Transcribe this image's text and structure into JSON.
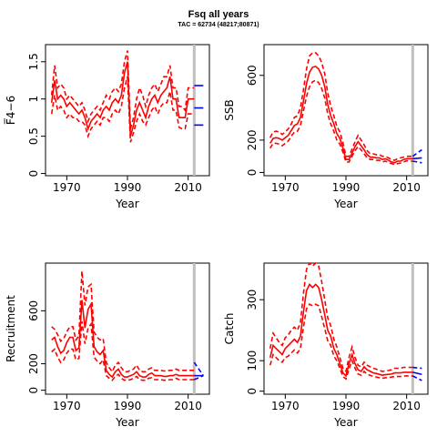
{
  "title": "Fsq all years",
  "subtitle": "TAC = 62734 (48217;80871)",
  "colors": {
    "estimate": "#ff0000",
    "forecast": "#0000ff",
    "marker": "#bfbfbf",
    "axis": "#000000"
  },
  "chart_data": [
    {
      "id": "fbar",
      "type": "line",
      "ylabel": "F̅4−6",
      "xlabel": "Year",
      "xlim": [
        1963,
        2017
      ],
      "ylim": [
        -0.03,
        1.73
      ],
      "xticks": [
        1970,
        1990,
        2010
      ],
      "yticks": [
        0.0,
        0.5,
        1.0,
        1.5
      ],
      "vline": 2012,
      "x": [
        1965,
        1966,
        1967,
        1968,
        1969,
        1970,
        1971,
        1972,
        1973,
        1974,
        1975,
        1976,
        1977,
        1978,
        1979,
        1980,
        1981,
        1982,
        1983,
        1984,
        1985,
        1986,
        1987,
        1988,
        1989,
        1990,
        1991,
        1992,
        1993,
        1994,
        1995,
        1996,
        1997,
        1998,
        1999,
        2000,
        2001,
        2002,
        2003,
        2004,
        2005,
        2006,
        2007,
        2008,
        2009,
        2010,
        2011,
        2012
      ],
      "series": [
        {
          "role": "estimate",
          "values": [
            0.95,
            1.25,
            1.0,
            1.05,
            1.0,
            0.9,
            0.95,
            0.9,
            0.85,
            0.8,
            0.85,
            0.75,
            0.6,
            0.7,
            0.75,
            0.8,
            0.75,
            0.85,
            0.9,
            0.85,
            0.95,
            1.0,
            0.95,
            1.05,
            1.35,
            1.5,
            0.5,
            0.65,
            0.85,
            0.95,
            0.85,
            0.75,
            0.9,
            1.0,
            1.05,
            0.95,
            1.05,
            1.1,
            1.15,
            1.3,
            1.0,
            1.0,
            0.75,
            0.75,
            0.75,
            1.0,
            1.0,
            1.0
          ]
        },
        {
          "role": "upper",
          "values": [
            1.05,
            1.45,
            1.15,
            1.2,
            1.15,
            1.0,
            1.05,
            1.0,
            0.95,
            0.9,
            0.95,
            0.85,
            0.7,
            0.8,
            0.85,
            0.9,
            0.85,
            0.95,
            1.05,
            1.0,
            1.1,
            1.15,
            1.1,
            1.2,
            1.5,
            1.65,
            0.6,
            0.75,
            1.0,
            1.15,
            1.05,
            0.9,
            1.05,
            1.15,
            1.2,
            1.1,
            1.2,
            1.3,
            1.3,
            1.45,
            1.15,
            1.15,
            0.9,
            0.9,
            0.85,
            1.15,
            1.15,
            1.15
          ]
        },
        {
          "role": "lower",
          "values": [
            0.8,
            1.05,
            0.85,
            0.9,
            0.85,
            0.75,
            0.8,
            0.75,
            0.75,
            0.7,
            0.7,
            0.65,
            0.5,
            0.6,
            0.65,
            0.7,
            0.65,
            0.75,
            0.75,
            0.7,
            0.8,
            0.85,
            0.8,
            0.9,
            1.15,
            1.3,
            0.42,
            0.55,
            0.7,
            0.8,
            0.7,
            0.65,
            0.75,
            0.85,
            0.9,
            0.8,
            0.9,
            0.95,
            0.95,
            1.1,
            0.85,
            0.85,
            0.62,
            0.6,
            0.6,
            0.8,
            0.8,
            0.8
          ]
        }
      ],
      "forecast": {
        "x": [
          2012,
          2015
        ],
        "central": 0.88,
        "upper": 1.18,
        "lower": 0.65
      }
    },
    {
      "id": "ssb",
      "type": "line",
      "ylabel": "SSB",
      "xlabel": "Year",
      "xlim": [
        1963,
        2017
      ],
      "ylim": [
        -20,
        790
      ],
      "xticks": [
        1970,
        1990,
        2010
      ],
      "yticks": [
        0,
        200,
        600
      ],
      "vline": 2012,
      "x": [
        1965,
        1966,
        1967,
        1968,
        1969,
        1970,
        1971,
        1972,
        1973,
        1974,
        1975,
        1976,
        1977,
        1978,
        1979,
        1980,
        1981,
        1982,
        1983,
        1984,
        1985,
        1986,
        1987,
        1988,
        1989,
        1990,
        1991,
        1992,
        1993,
        1994,
        1995,
        1996,
        1997,
        1998,
        1999,
        2000,
        2001,
        2002,
        2003,
        2004,
        2005,
        2006,
        2007,
        2008,
        2009,
        2010,
        2011,
        2012
      ],
      "series": [
        {
          "role": "estimate",
          "values": [
            180,
            210,
            215,
            210,
            200,
            215,
            230,
            260,
            290,
            300,
            340,
            440,
            550,
            620,
            650,
            655,
            640,
            600,
            530,
            420,
            350,
            300,
            240,
            210,
            150,
            80,
            80,
            120,
            160,
            190,
            165,
            140,
            110,
            95,
            95,
            90,
            90,
            80,
            85,
            75,
            65,
            60,
            70,
            70,
            80,
            85,
            85,
            85
          ]
        },
        {
          "role": "upper",
          "values": [
            215,
            250,
            255,
            250,
            235,
            250,
            270,
            300,
            340,
            350,
            400,
            510,
            640,
            720,
            740,
            740,
            720,
            680,
            610,
            490,
            410,
            350,
            285,
            250,
            185,
            100,
            100,
            145,
            190,
            230,
            200,
            170,
            135,
            115,
            115,
            110,
            110,
            100,
            100,
            90,
            80,
            75,
            85,
            90,
            95,
            100,
            100,
            100
          ]
        },
        {
          "role": "lower",
          "values": [
            150,
            180,
            180,
            175,
            165,
            180,
            195,
            225,
            250,
            255,
            290,
            380,
            470,
            530,
            560,
            570,
            555,
            520,
            460,
            360,
            300,
            255,
            200,
            175,
            125,
            65,
            65,
            100,
            135,
            160,
            140,
            115,
            90,
            80,
            80,
            75,
            75,
            65,
            70,
            62,
            55,
            50,
            55,
            58,
            65,
            72,
            70,
            70
          ]
        }
      ],
      "forecast": {
        "x": [
          2012,
          2015
        ],
        "central": [
          85,
          90
        ],
        "upper": [
          100,
          140
        ],
        "lower": [
          70,
          60
        ]
      }
    },
    {
      "id": "recruitment",
      "type": "line",
      "ylabel": "Recruitment",
      "xlabel": "Year",
      "xlim": [
        1963,
        2017
      ],
      "ylim": [
        -30,
        960
      ],
      "xticks": [
        1970,
        1990,
        2010
      ],
      "yticks": [
        0,
        200,
        600
      ],
      "vline": 2012,
      "x": [
        1965,
        1966,
        1967,
        1968,
        1969,
        1970,
        1971,
        1972,
        1973,
        1974,
        1975,
        1976,
        1977,
        1978,
        1979,
        1980,
        1981,
        1982,
        1983,
        1984,
        1985,
        1986,
        1987,
        1988,
        1989,
        1990,
        1991,
        1992,
        1993,
        1994,
        1995,
        1996,
        1997,
        1998,
        1999,
        2000,
        2001,
        2002,
        2003,
        2004,
        2005,
        2006,
        2007,
        2008,
        2009,
        2010,
        2011,
        2012
      ],
      "series": [
        {
          "role": "estimate",
          "values": [
            380,
            400,
            330,
            280,
            300,
            360,
            400,
            400,
            300,
            320,
            680,
            470,
            610,
            650,
            330,
            290,
            270,
            300,
            150,
            120,
            100,
            140,
            160,
            120,
            100,
            100,
            110,
            120,
            140,
            110,
            100,
            100,
            120,
            130,
            110,
            110,
            110,
            105,
            105,
            110,
            110,
            120,
            110,
            110,
            110,
            110,
            110,
            110
          ]
        },
        {
          "role": "upper",
          "values": [
            480,
            460,
            420,
            370,
            390,
            440,
            480,
            480,
            380,
            410,
            900,
            640,
            780,
            800,
            440,
            400,
            380,
            390,
            210,
            170,
            140,
            190,
            210,
            170,
            140,
            140,
            150,
            160,
            190,
            150,
            140,
            140,
            160,
            170,
            150,
            150,
            150,
            145,
            145,
            150,
            150,
            160,
            150,
            150,
            150,
            150,
            150,
            150
          ]
        },
        {
          "role": "lower",
          "values": [
            290,
            310,
            250,
            210,
            230,
            280,
            310,
            310,
            230,
            240,
            520,
            350,
            470,
            500,
            250,
            220,
            200,
            230,
            110,
            90,
            75,
            105,
            120,
            90,
            75,
            75,
            80,
            90,
            105,
            80,
            75,
            75,
            90,
            95,
            80,
            80,
            80,
            75,
            75,
            80,
            80,
            90,
            80,
            80,
            80,
            80,
            80,
            80
          ]
        }
      ],
      "forecast": {
        "x": [
          2012,
          2015
        ],
        "central": [
          110,
          110
        ],
        "upper": [
          210,
          110
        ],
        "lower": [
          80,
          110
        ]
      }
    },
    {
      "id": "catch",
      "type": "line",
      "ylabel": "Catch",
      "xlabel": "Year",
      "xlim": [
        1963,
        2017
      ],
      "ylim": [
        -10,
        420
      ],
      "xticks": [
        1970,
        1990,
        2010
      ],
      "yticks": [
        0,
        100,
        300
      ],
      "vline": 2012,
      "x": [
        1965,
        1966,
        1967,
        1968,
        1969,
        1970,
        1971,
        1972,
        1973,
        1974,
        1975,
        1976,
        1977,
        1978,
        1979,
        1980,
        1981,
        1982,
        1983,
        1984,
        1985,
        1986,
        1987,
        1988,
        1989,
        1990,
        1991,
        1992,
        1993,
        1994,
        1995,
        1996,
        1997,
        1998,
        1999,
        2000,
        2001,
        2002,
        2003,
        2004,
        2005,
        2006,
        2007,
        2008,
        2009,
        2010,
        2011,
        2012
      ],
      "series": [
        {
          "role": "estimate",
          "values": [
            110,
            150,
            140,
            130,
            120,
            140,
            150,
            160,
            170,
            160,
            180,
            260,
            330,
            350,
            340,
            350,
            340,
            300,
            250,
            200,
            180,
            140,
            120,
            90,
            60,
            50,
            90,
            120,
            90,
            70,
            65,
            80,
            70,
            65,
            60,
            58,
            55,
            52,
            54,
            55,
            56,
            60,
            60,
            60,
            62,
            62,
            62,
            62
          ]
        },
        {
          "role": "upper",
          "values": [
            140,
            190,
            175,
            160,
            150,
            175,
            185,
            200,
            210,
            200,
            225,
            320,
            400,
            420,
            410,
            420,
            410,
            360,
            300,
            240,
            215,
            170,
            145,
            110,
            75,
            65,
            110,
            145,
            110,
            85,
            80,
            95,
            85,
            80,
            75,
            72,
            68,
            65,
            66,
            68,
            70,
            75,
            75,
            75,
            78,
            78,
            78,
            78
          ]
        },
        {
          "role": "lower",
          "values": [
            85,
            120,
            110,
            100,
            95,
            110,
            115,
            125,
            135,
            125,
            140,
            210,
            270,
            285,
            280,
            285,
            280,
            245,
            205,
            165,
            150,
            115,
            100,
            75,
            48,
            40,
            72,
            100,
            75,
            56,
            52,
            65,
            55,
            52,
            48,
            46,
            44,
            42,
            44,
            45,
            46,
            48,
            48,
            48,
            50,
            50,
            50,
            50
          ]
        }
      ],
      "forecast": {
        "x": [
          2012,
          2015
        ],
        "central": [
          62,
          55
        ],
        "upper": [
          78,
          75
        ],
        "lower": [
          50,
          35
        ]
      }
    }
  ]
}
